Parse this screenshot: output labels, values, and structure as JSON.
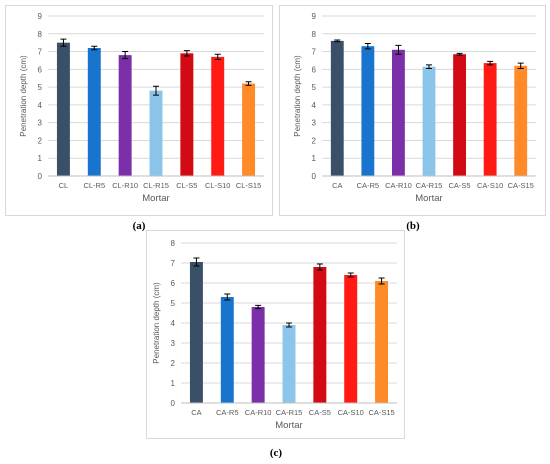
{
  "figure": {
    "captions": [
      "(a)",
      "(b)",
      "(c)"
    ]
  },
  "colors": {
    "dark_slate": "#3a5068",
    "blue": "#1874cd",
    "purple": "#7b2fa8",
    "light_blue": "#8cc5ea",
    "red_dark": "#d10a14",
    "red": "#ff1a14",
    "orange": "#ff8a2a",
    "grid": "#d9d9d9",
    "axis_text": "#595959"
  },
  "chart_data": [
    {
      "type": "bar",
      "caption": "(a)",
      "categories": [
        "CL",
        "CL-R5",
        "CL-R10",
        "CL-R15",
        "CL-S5",
        "CL-S10",
        "CL-S15"
      ],
      "values": [
        7.5,
        7.2,
        6.8,
        4.8,
        6.9,
        6.7,
        5.2
      ],
      "errors": [
        0.2,
        0.1,
        0.2,
        0.25,
        0.15,
        0.15,
        0.1
      ],
      "bar_colors": [
        "#3a5068",
        "#1874cd",
        "#7b2fa8",
        "#8cc5ea",
        "#d10a14",
        "#ff1a14",
        "#ff8a2a"
      ],
      "xlabel": "Mortar",
      "ylabel": "Penetration depth (cm)",
      "ylim": [
        0,
        9
      ],
      "yticks": [
        "0",
        "1",
        "2",
        "3",
        "4",
        "5",
        "6",
        "7",
        "8",
        "9"
      ],
      "grid": true,
      "legend": "none"
    },
    {
      "type": "bar",
      "caption": "(b)",
      "categories": [
        "CA",
        "CA-R5",
        "CA-R10",
        "CA-R15",
        "CA-S5",
        "CA-S10",
        "CA-S15"
      ],
      "values": [
        7.6,
        7.3,
        7.1,
        6.15,
        6.85,
        6.35,
        6.2
      ],
      "errors": [
        0.05,
        0.15,
        0.25,
        0.1,
        0.05,
        0.1,
        0.15
      ],
      "bar_colors": [
        "#3a5068",
        "#1874cd",
        "#7b2fa8",
        "#8cc5ea",
        "#d10a14",
        "#ff1a14",
        "#ff8a2a"
      ],
      "xlabel": "Mortar",
      "ylabel": "Penetration depth (cm)",
      "ylim": [
        0,
        9
      ],
      "yticks": [
        "0",
        "1",
        "2",
        "3",
        "4",
        "5",
        "6",
        "7",
        "8",
        "9"
      ],
      "grid": true,
      "legend": "none"
    },
    {
      "type": "bar",
      "caption": "(c)",
      "categories": [
        "CA",
        "CA-R5",
        "CA-R10",
        "CA-R15",
        "CA-S5",
        "CA-S10",
        "CA-S15"
      ],
      "values": [
        7.05,
        5.3,
        4.8,
        3.9,
        6.8,
        6.4,
        6.1
      ],
      "errors": [
        0.2,
        0.15,
        0.08,
        0.1,
        0.15,
        0.1,
        0.15
      ],
      "bar_colors": [
        "#3a5068",
        "#1874cd",
        "#7b2fa8",
        "#8cc5ea",
        "#d10a14",
        "#ff1a14",
        "#ff8a2a"
      ],
      "xlabel": "Mortar",
      "ylabel": "Penetration depth (cm)",
      "ylim": [
        0,
        8
      ],
      "yticks": [
        "0",
        "1",
        "2",
        "3",
        "4",
        "5",
        "6",
        "7",
        "8"
      ],
      "grid": true,
      "legend": "none"
    }
  ]
}
